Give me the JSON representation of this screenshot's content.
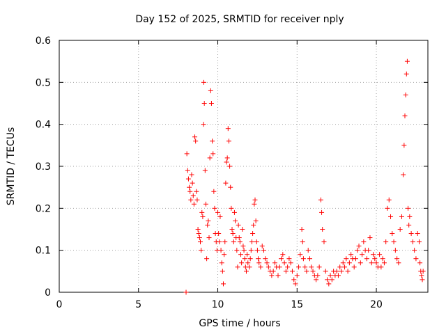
{
  "chart_data": {
    "type": "scatter",
    "title": "Day 152 of 2025, SRMTID for receiver nply",
    "xlabel": "GPS time / hours",
    "ylabel": "SRMTID / TECUs",
    "xlim": [
      0,
      23.25
    ],
    "ylim": [
      0,
      0.6
    ],
    "xticks": [
      0,
      5,
      10,
      15,
      20
    ],
    "yticks": [
      0,
      0.1,
      0.2,
      0.3,
      0.4,
      0.5,
      0.6
    ],
    "xtick_labels": [
      "0",
      "5",
      "10",
      "15",
      "20"
    ],
    "ytick_labels": [
      "0",
      "0.1",
      "0.2",
      "0.3",
      "0.4",
      "0.5",
      "0.6"
    ],
    "grid": true,
    "marker": "+",
    "color": "#ff0000",
    "series": [
      {
        "name": "SRMTID",
        "points": [
          [
            8.0,
            0.0
          ],
          [
            8.05,
            0.33
          ],
          [
            8.1,
            0.29
          ],
          [
            8.15,
            0.27
          ],
          [
            8.2,
            0.25
          ],
          [
            8.25,
            0.24
          ],
          [
            8.3,
            0.22
          ],
          [
            8.35,
            0.28
          ],
          [
            8.4,
            0.26
          ],
          [
            8.45,
            0.23
          ],
          [
            8.5,
            0.21
          ],
          [
            8.55,
            0.37
          ],
          [
            8.6,
            0.36
          ],
          [
            8.65,
            0.24
          ],
          [
            8.7,
            0.22
          ],
          [
            8.75,
            0.15
          ],
          [
            8.8,
            0.14
          ],
          [
            8.85,
            0.13
          ],
          [
            8.9,
            0.12
          ],
          [
            8.95,
            0.1
          ],
          [
            9.0,
            0.19
          ],
          [
            9.05,
            0.18
          ],
          [
            9.1,
            0.4
          ],
          [
            9.12,
            0.5
          ],
          [
            9.15,
            0.45
          ],
          [
            9.2,
            0.29
          ],
          [
            9.25,
            0.21
          ],
          [
            9.3,
            0.08
          ],
          [
            9.35,
            0.16
          ],
          [
            9.4,
            0.17
          ],
          [
            9.45,
            0.13
          ],
          [
            9.5,
            0.32
          ],
          [
            9.55,
            0.48
          ],
          [
            9.6,
            0.45
          ],
          [
            9.65,
            0.36
          ],
          [
            9.7,
            0.33
          ],
          [
            9.75,
            0.24
          ],
          [
            9.8,
            0.2
          ],
          [
            9.85,
            0.14
          ],
          [
            9.9,
            0.12
          ],
          [
            9.95,
            0.1
          ],
          [
            10.0,
            0.19
          ],
          [
            10.05,
            0.14
          ],
          [
            10.1,
            0.12
          ],
          [
            10.15,
            0.18
          ],
          [
            10.2,
            0.1
          ],
          [
            10.25,
            0.07
          ],
          [
            10.3,
            0.05
          ],
          [
            10.35,
            0.02
          ],
          [
            10.4,
            0.09
          ],
          [
            10.45,
            0.12
          ],
          [
            10.5,
            0.26
          ],
          [
            10.55,
            0.31
          ],
          [
            10.6,
            0.32
          ],
          [
            10.65,
            0.39
          ],
          [
            10.7,
            0.36
          ],
          [
            10.75,
            0.3
          ],
          [
            10.8,
            0.25
          ],
          [
            10.85,
            0.2
          ],
          [
            10.9,
            0.15
          ],
          [
            10.95,
            0.14
          ],
          [
            11.0,
            0.12
          ],
          [
            11.05,
            0.19
          ],
          [
            11.1,
            0.17
          ],
          [
            11.15,
            0.13
          ],
          [
            11.2,
            0.1
          ],
          [
            11.25,
            0.06
          ],
          [
            11.3,
            0.16
          ],
          [
            11.35,
            0.13
          ],
          [
            11.4,
            0.12
          ],
          [
            11.45,
            0.09
          ],
          [
            11.5,
            0.07
          ],
          [
            11.55,
            0.15
          ],
          [
            11.6,
            0.11
          ],
          [
            11.65,
            0.1
          ],
          [
            11.7,
            0.08
          ],
          [
            11.75,
            0.06
          ],
          [
            11.8,
            0.05
          ],
          [
            11.85,
            0.09
          ],
          [
            11.9,
            0.07
          ],
          [
            12.0,
            0.06
          ],
          [
            12.05,
            0.08
          ],
          [
            12.1,
            0.1
          ],
          [
            12.15,
            0.12
          ],
          [
            12.2,
            0.14
          ],
          [
            12.25,
            0.16
          ],
          [
            12.3,
            0.21
          ],
          [
            12.35,
            0.22
          ],
          [
            12.4,
            0.17
          ],
          [
            12.45,
            0.12
          ],
          [
            12.5,
            0.1
          ],
          [
            12.55,
            0.08
          ],
          [
            12.6,
            0.07
          ],
          [
            12.7,
            0.06
          ],
          [
            12.8,
            0.11
          ],
          [
            12.9,
            0.1
          ],
          [
            13.0,
            0.08
          ],
          [
            13.1,
            0.07
          ],
          [
            13.2,
            0.06
          ],
          [
            13.3,
            0.05
          ],
          [
            13.4,
            0.04
          ],
          [
            13.5,
            0.05
          ],
          [
            13.6,
            0.07
          ],
          [
            13.7,
            0.06
          ],
          [
            13.8,
            0.04
          ],
          [
            13.9,
            0.06
          ],
          [
            14.0,
            0.08
          ],
          [
            14.1,
            0.09
          ],
          [
            14.2,
            0.07
          ],
          [
            14.3,
            0.05
          ],
          [
            14.4,
            0.06
          ],
          [
            14.5,
            0.08
          ],
          [
            14.6,
            0.07
          ],
          [
            14.7,
            0.05
          ],
          [
            14.8,
            0.03
          ],
          [
            14.9,
            0.02
          ],
          [
            15.0,
            0.04
          ],
          [
            15.1,
            0.06
          ],
          [
            15.2,
            0.09
          ],
          [
            15.3,
            0.15
          ],
          [
            15.35,
            0.12
          ],
          [
            15.4,
            0.08
          ],
          [
            15.5,
            0.06
          ],
          [
            15.6,
            0.05
          ],
          [
            15.7,
            0.1
          ],
          [
            15.8,
            0.08
          ],
          [
            15.9,
            0.06
          ],
          [
            16.0,
            0.05
          ],
          [
            16.1,
            0.04
          ],
          [
            16.2,
            0.03
          ],
          [
            16.3,
            0.04
          ],
          [
            16.4,
            0.06
          ],
          [
            16.5,
            0.22
          ],
          [
            16.55,
            0.19
          ],
          [
            16.6,
            0.15
          ],
          [
            16.7,
            0.12
          ],
          [
            16.8,
            0.05
          ],
          [
            16.9,
            0.03
          ],
          [
            17.0,
            0.02
          ],
          [
            17.1,
            0.04
          ],
          [
            17.2,
            0.03
          ],
          [
            17.3,
            0.05
          ],
          [
            17.4,
            0.04
          ],
          [
            17.5,
            0.05
          ],
          [
            17.6,
            0.04
          ],
          [
            17.7,
            0.06
          ],
          [
            17.8,
            0.05
          ],
          [
            17.9,
            0.07
          ],
          [
            18.0,
            0.06
          ],
          [
            18.1,
            0.08
          ],
          [
            18.2,
            0.05
          ],
          [
            18.3,
            0.07
          ],
          [
            18.4,
            0.09
          ],
          [
            18.5,
            0.08
          ],
          [
            18.6,
            0.06
          ],
          [
            18.7,
            0.08
          ],
          [
            18.8,
            0.1
          ],
          [
            18.9,
            0.11
          ],
          [
            19.0,
            0.07
          ],
          [
            19.1,
            0.09
          ],
          [
            19.2,
            0.12
          ],
          [
            19.3,
            0.1
          ],
          [
            19.4,
            0.08
          ],
          [
            19.5,
            0.1
          ],
          [
            19.6,
            0.13
          ],
          [
            19.7,
            0.07
          ],
          [
            19.8,
            0.09
          ],
          [
            19.9,
            0.08
          ],
          [
            20.0,
            0.07
          ],
          [
            20.1,
            0.06
          ],
          [
            20.2,
            0.09
          ],
          [
            20.3,
            0.06
          ],
          [
            20.4,
            0.08
          ],
          [
            20.5,
            0.07
          ],
          [
            20.6,
            0.12
          ],
          [
            20.7,
            0.2
          ],
          [
            20.8,
            0.22
          ],
          [
            20.9,
            0.18
          ],
          [
            21.0,
            0.14
          ],
          [
            21.1,
            0.12
          ],
          [
            21.2,
            0.1
          ],
          [
            21.3,
            0.08
          ],
          [
            21.4,
            0.07
          ],
          [
            21.5,
            0.15
          ],
          [
            21.6,
            0.18
          ],
          [
            21.7,
            0.28
          ],
          [
            21.75,
            0.35
          ],
          [
            21.8,
            0.42
          ],
          [
            21.85,
            0.47
          ],
          [
            21.9,
            0.52
          ],
          [
            21.95,
            0.55
          ],
          [
            22.0,
            0.2
          ],
          [
            22.05,
            0.16
          ],
          [
            22.1,
            0.18
          ],
          [
            22.2,
            0.14
          ],
          [
            22.3,
            0.12
          ],
          [
            22.4,
            0.1
          ],
          [
            22.5,
            0.08
          ],
          [
            22.6,
            0.14
          ],
          [
            22.7,
            0.12
          ],
          [
            22.75,
            0.07
          ],
          [
            22.8,
            0.05
          ],
          [
            22.85,
            0.04
          ],
          [
            22.9,
            0.03
          ],
          [
            22.95,
            0.05
          ]
        ]
      }
    ]
  }
}
